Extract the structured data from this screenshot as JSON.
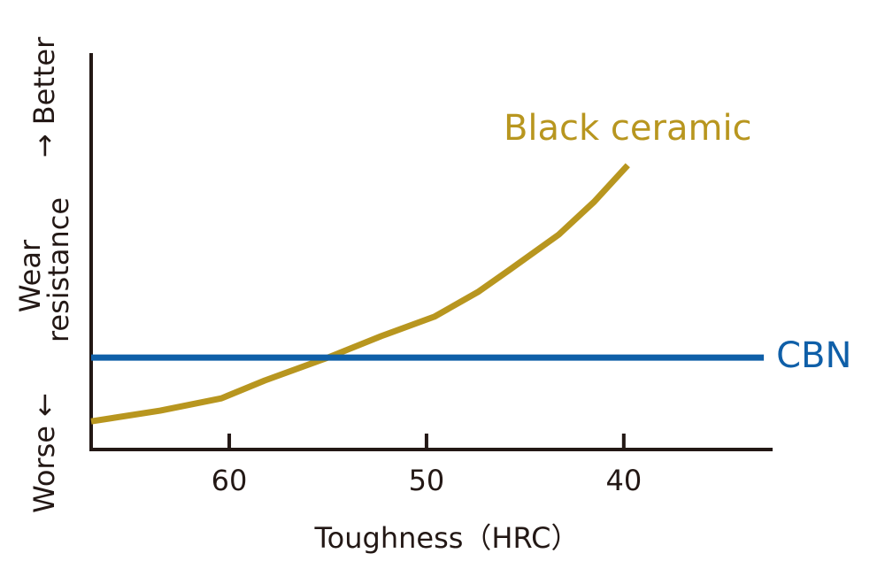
{
  "chart_data": {
    "type": "line",
    "x_label": "Toughness（HRC）",
    "y_label": {
      "low": "Worse ←",
      "main": [
        "Wear",
        "resistance"
      ],
      "high": "→ Better"
    },
    "xlim": [
      67,
      32.5
    ],
    "xticks": [
      60,
      50,
      40
    ],
    "ylim": [
      0,
      100
    ],
    "series": [
      {
        "name": "Black ceramic",
        "color": "#b8961f",
        "x": [
          67,
          63.5,
          60.4,
          58.2,
          55.0,
          52.3,
          49.6,
          47.4,
          45.8,
          43.3,
          41.5,
          39.8
        ],
        "values": [
          7.1,
          9.8,
          12.9,
          17.4,
          23.2,
          28.6,
          33.5,
          39.7,
          45.3,
          54.2,
          62.5,
          71.7
        ]
      },
      {
        "name": "CBN",
        "color": "#0f5fa8",
        "x": [
          67,
          32.9
        ],
        "values": [
          23.2,
          23.2
        ]
      }
    ]
  }
}
